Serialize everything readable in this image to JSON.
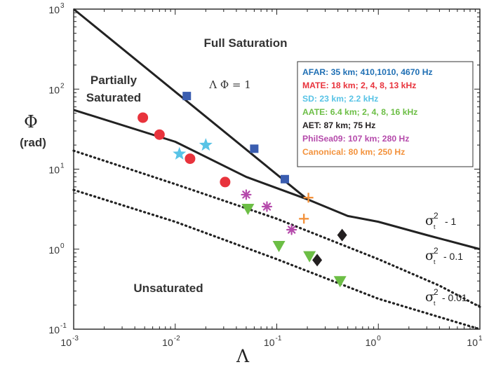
{
  "chart_data": {
    "type": "scatter",
    "xscale": "log",
    "yscale": "log",
    "xlim": [
      0.001,
      10
    ],
    "ylim": [
      0.1,
      1000
    ],
    "xlabel": "Λ",
    "ylabel": "Φ",
    "ylabel_unit": "(rad)",
    "x_ticks": [
      {
        "value": 0.001,
        "base": "10",
        "exp": "-3"
      },
      {
        "value": 0.01,
        "base": "10",
        "exp": "-2"
      },
      {
        "value": 0.1,
        "base": "10",
        "exp": "-1"
      },
      {
        "value": 1,
        "base": "10",
        "exp": "0"
      },
      {
        "value": 10,
        "base": "10",
        "exp": "1"
      }
    ],
    "y_ticks": [
      {
        "value": 0.1,
        "base": "10",
        "exp": "-1"
      },
      {
        "value": 1,
        "base": "10",
        "exp": "0"
      },
      {
        "value": 10,
        "base": "10",
        "exp": "1"
      },
      {
        "value": 100,
        "base": "10",
        "exp": "2"
      },
      {
        "value": 1000,
        "base": "10",
        "exp": "3"
      }
    ],
    "regions": {
      "full_saturation": "Full Saturation",
      "partially_saturated_line1": "Partially",
      "partially_saturated_line2": "Saturated",
      "unsaturated": "Unsaturated",
      "lambda_phi": "Λ Φ = 1"
    },
    "curve_labels": [
      {
        "sigma": "σ",
        "sup": "2",
        "sub": "t",
        "value": "- 1"
      },
      {
        "sigma": "σ",
        "sup": "2",
        "sub": "t",
        "value": "- 0.1"
      },
      {
        "sigma": "σ",
        "sup": "2",
        "sub": "t",
        "value": "- 0.01"
      }
    ],
    "boundary_lines": [
      {
        "style": "solid",
        "points": [
          [
            0.001,
            1000
          ],
          [
            0.2,
            4.2
          ]
        ]
      },
      {
        "style": "solid",
        "points": [
          [
            0.001,
            55
          ],
          [
            0.01,
            22
          ],
          [
            0.05,
            8
          ],
          [
            0.2,
            4.2
          ],
          [
            0.5,
            2.6
          ],
          [
            1,
            2.2
          ],
          [
            3,
            1.5
          ],
          [
            10,
            1.0
          ]
        ]
      },
      {
        "style": "dotted",
        "points": [
          [
            0.001,
            17
          ],
          [
            0.01,
            6.5
          ],
          [
            0.1,
            2.4
          ],
          [
            1,
            0.75
          ],
          [
            4,
            0.35
          ],
          [
            10,
            0.19
          ]
        ]
      },
      {
        "style": "dotted",
        "points": [
          [
            0.001,
            5.5
          ],
          [
            0.01,
            2.2
          ],
          [
            0.1,
            0.75
          ],
          [
            1,
            0.24
          ],
          [
            10,
            0.1
          ]
        ]
      }
    ],
    "legend": [
      {
        "label": "AFAR: 35 km; 410,1010, 4670 Hz",
        "color": "#1f6fb4"
      },
      {
        "label": "MATE: 18 km; 2, 4, 8, 13 kHz",
        "color": "#e8333c"
      },
      {
        "label": "SD: 23 km; 2.2 kHz",
        "color": "#58c3e6"
      },
      {
        "label": "AATE: 6.4 km; 2, 4, 8, 16 kHz",
        "color": "#6cbe45"
      },
      {
        "label": "AET: 87 km; 75 Hz",
        "color": "#231f20"
      },
      {
        "label": "PhilSea09: 107 km; 280 Hz",
        "color": "#b54aab"
      },
      {
        "label": "Canonical: 80 km; 250 Hz",
        "color": "#f3923c"
      }
    ],
    "legend_position": "top-right",
    "series": [
      {
        "name": "AFAR",
        "marker": "square",
        "color": "#3a5db0",
        "points": [
          [
            0.013,
            82
          ],
          [
            0.06,
            18
          ],
          [
            0.12,
            7.5
          ]
        ]
      },
      {
        "name": "MATE",
        "marker": "circle",
        "color": "#e8333c",
        "points": [
          [
            0.0048,
            44
          ],
          [
            0.007,
            27
          ],
          [
            0.014,
            13.5
          ],
          [
            0.031,
            6.9
          ]
        ]
      },
      {
        "name": "SD",
        "marker": "star",
        "color": "#58c3e6",
        "points": [
          [
            0.011,
            15.5
          ],
          [
            0.02,
            20
          ]
        ]
      },
      {
        "name": "AATE",
        "marker": "triangle-down",
        "color": "#6cbe45",
        "points": [
          [
            0.052,
            3.2
          ],
          [
            0.105,
            1.1
          ],
          [
            0.21,
            0.82
          ],
          [
            0.42,
            0.4
          ]
        ]
      },
      {
        "name": "AET",
        "marker": "diamond",
        "color": "#231f20",
        "points": [
          [
            0.44,
            1.5
          ],
          [
            0.25,
            0.73
          ]
        ]
      },
      {
        "name": "PhilSea09",
        "marker": "asterisk",
        "color": "#b54aab",
        "points": [
          [
            0.05,
            4.8
          ],
          [
            0.08,
            3.4
          ],
          [
            0.14,
            1.75
          ]
        ]
      },
      {
        "name": "Canonical",
        "marker": "plus",
        "color": "#f3923c",
        "points": [
          [
            0.205,
            4.4
          ],
          [
            0.185,
            2.4
          ]
        ]
      }
    ]
  }
}
